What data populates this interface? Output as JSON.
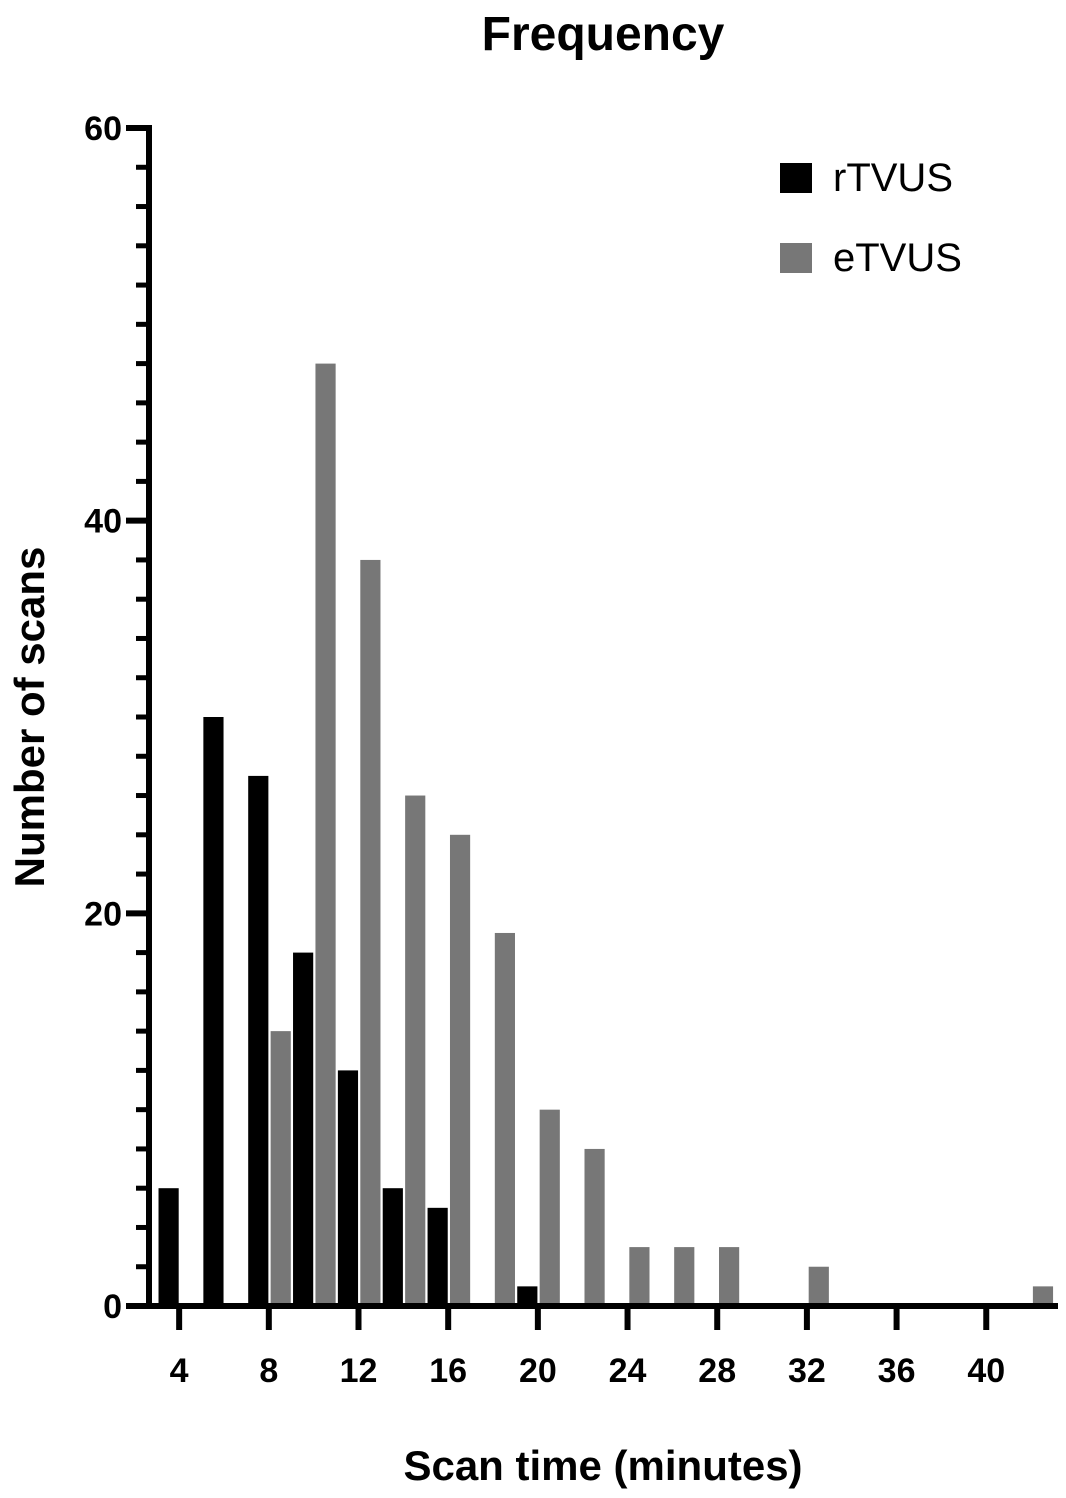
{
  "chart_data": {
    "type": "bar",
    "title": "Frequency",
    "x_label": "Scan time (minutes)",
    "y_label": "Number of scans",
    "x": [
      4,
      6,
      8,
      10,
      12,
      14,
      16,
      18,
      20,
      22,
      24,
      26,
      28,
      30,
      32,
      34,
      36,
      38,
      40,
      42
    ],
    "series": [
      {
        "name": "rTVUS",
        "color": "#000000",
        "values": [
          6,
          30,
          27,
          18,
          12,
          6,
          5,
          0,
          1,
          0,
          0,
          0,
          0,
          0,
          0,
          0,
          0,
          0,
          0,
          0
        ]
      },
      {
        "name": "eTVUS",
        "color": "#777777",
        "values": [
          0,
          0,
          14,
          48,
          38,
          26,
          24,
          19,
          10,
          8,
          3,
          3,
          3,
          0,
          2,
          0,
          0,
          0,
          0,
          1
        ]
      }
    ],
    "xlim": [
      2.7,
      43.2
    ],
    "xticks": [
      4,
      8,
      12,
      16,
      20,
      24,
      28,
      32,
      36,
      40
    ],
    "ylim": [
      0,
      60
    ],
    "yticks": [
      0,
      20,
      40,
      60
    ],
    "yminorticks": [
      2,
      4,
      6,
      8,
      10,
      12,
      14,
      16,
      18,
      22,
      24,
      26,
      28,
      30,
      32,
      34,
      36,
      38,
      42,
      44,
      46,
      48,
      50,
      52,
      54,
      56,
      58
    ],
    "legend": "upper right"
  }
}
